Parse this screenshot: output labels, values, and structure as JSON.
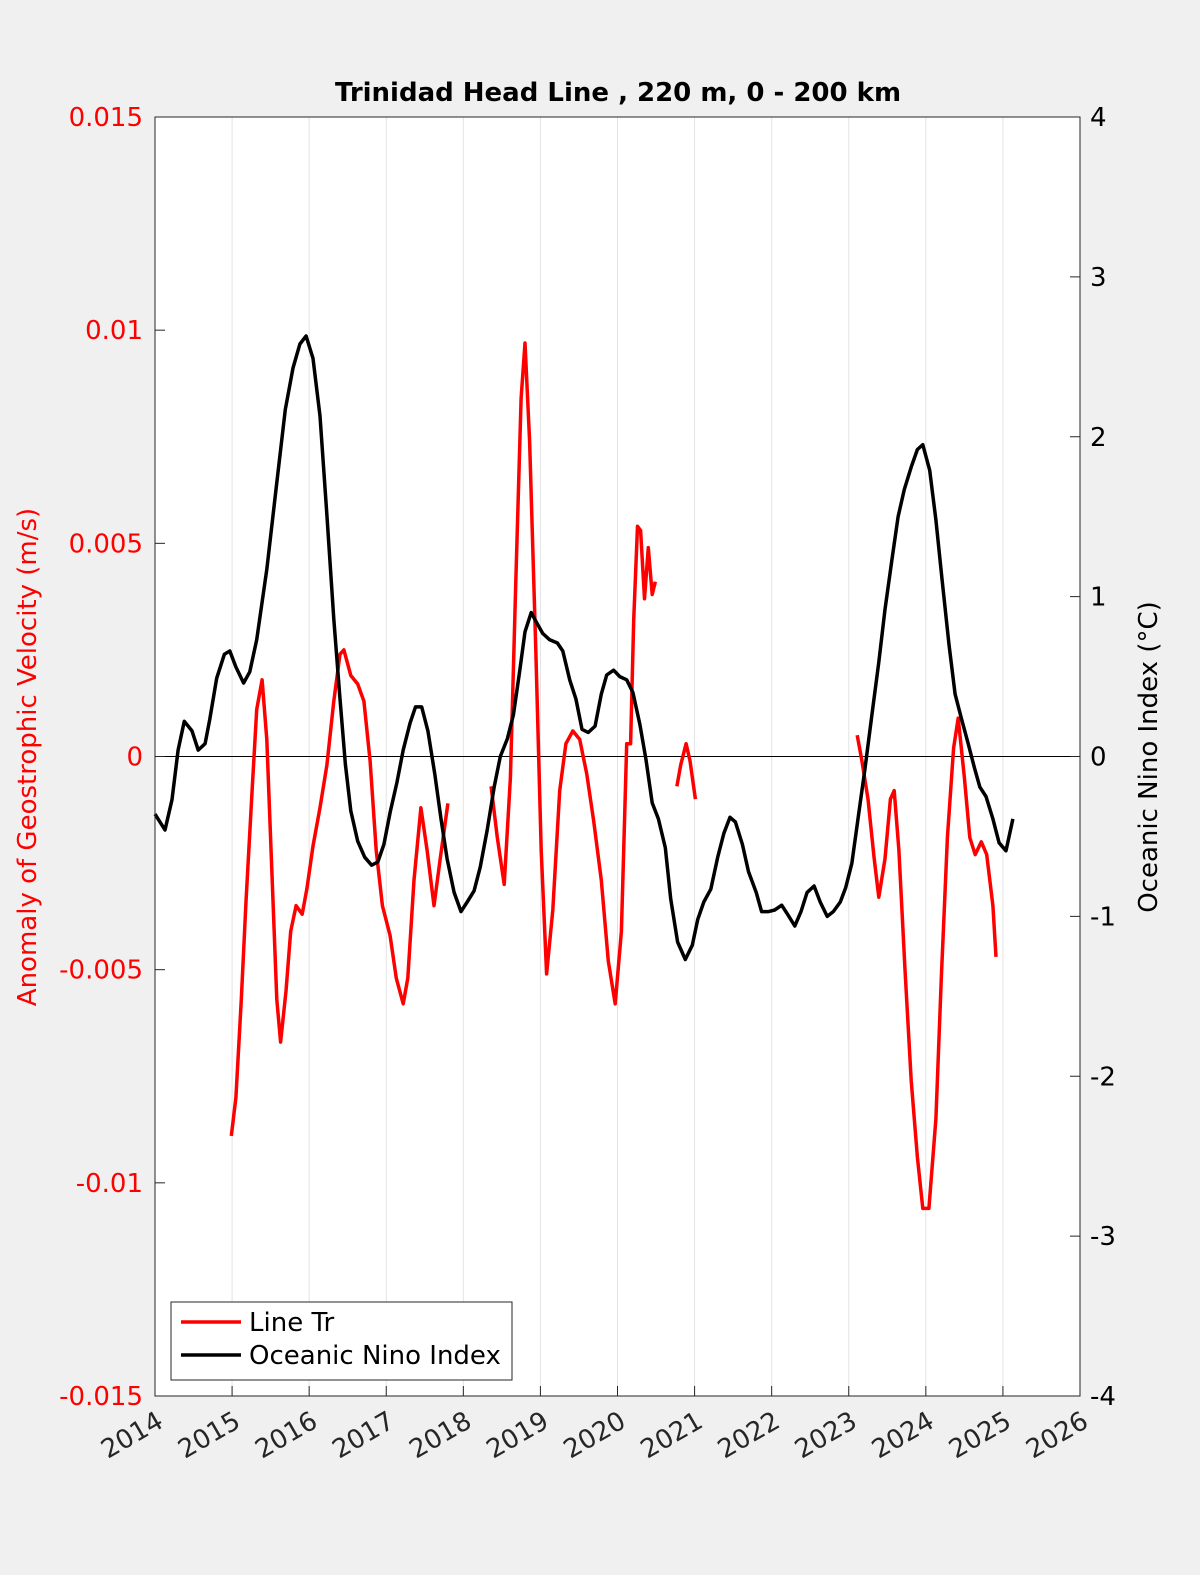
{
  "chart_data": {
    "type": "line",
    "title": "Trinidad Head Line , 220 m, 0 - 200 km",
    "ylabel": "Anomaly of Geostrophic Velocity (m/s)",
    "y2label": "Oceanic Nino Index (°C)",
    "xlim": [
      2014,
      2026
    ],
    "xticks": [
      2014,
      2015,
      2016,
      2017,
      2018,
      2019,
      2020,
      2021,
      2022,
      2023,
      2024,
      2025,
      2026
    ],
    "ylim": [
      -0.015,
      0.015
    ],
    "yticks": [
      -0.015,
      -0.01,
      -0.005,
      0,
      0.005,
      0.01,
      0.015
    ],
    "y2lim": [
      -4,
      4
    ],
    "y2ticks": [
      -4,
      -3,
      -2,
      -1,
      0,
      1,
      2,
      3,
      4
    ],
    "grid": true,
    "legend": "lower left",
    "ylabel_color": "#ff0000",
    "series": [
      {
        "name": "Line Tr",
        "color": "#ff0000",
        "axis": "y",
        "x": [
          2014.99,
          2015.05,
          2015.12,
          2015.18,
          2015.26,
          2015.32,
          2015.39,
          2015.45,
          2015.52,
          2015.58,
          2015.63,
          2015.7,
          2015.76,
          2015.83,
          2015.91,
          2015.97,
          2016.05,
          2016.14,
          2016.23,
          2016.32,
          2016.4,
          2016.45,
          2016.54,
          2016.63,
          2016.71,
          2016.79,
          2016.87,
          2016.95,
          2017.05,
          2017.13,
          2017.22,
          2017.28,
          2017.36,
          2017.45,
          2017.53,
          2017.62,
          2017.7,
          2017.8,
          2018.0,
          2018.36,
          2018.44,
          2018.53,
          2018.61,
          2018.68,
          2018.75,
          2018.8,
          2018.86,
          2018.94,
          2019.01,
          2019.08,
          2019.16,
          2019.25,
          2019.33,
          2019.42,
          2019.51,
          2019.6,
          2019.69,
          2019.79,
          2019.88,
          2019.97,
          2020.05,
          2020.12,
          2020.17,
          2020.21,
          2020.26,
          2020.3,
          2020.35,
          2020.4,
          2020.45,
          2020.49,
          2020.6,
          2020.77,
          2020.82,
          2020.89,
          2020.94,
          2021.01,
          2022.0,
          2023.11,
          2023.17,
          2023.25,
          2023.33,
          2023.39,
          2023.47,
          2023.54,
          2023.59,
          2023.65,
          2023.73,
          2023.81,
          2023.89,
          2023.96,
          2024.04,
          2024.13,
          2024.2,
          2024.28,
          2024.36,
          2024.42,
          2024.5,
          2024.57,
          2024.64,
          2024.72,
          2024.79,
          2024.87,
          2024.91
        ],
        "values": [
          -0.0089,
          -0.008,
          -0.0057,
          -0.0034,
          -0.0008,
          0.0011,
          0.0018,
          0.0004,
          -0.0029,
          -0.0057,
          -0.0067,
          -0.0055,
          -0.0041,
          -0.0035,
          -0.0037,
          -0.0031,
          -0.0021,
          -0.0012,
          -0.0002,
          0.0013,
          0.0024,
          0.0025,
          0.0019,
          0.0017,
          0.0013,
          -0.0001,
          -0.0022,
          -0.0035,
          -0.0042,
          -0.0052,
          -0.0058,
          -0.0052,
          -0.0029,
          -0.0012,
          -0.0022,
          -0.0035,
          -0.0024,
          -0.0011,
          null,
          -0.0007,
          -0.0019,
          -0.003,
          -0.0005,
          0.0041,
          0.0084,
          0.0097,
          0.0074,
          0.0025,
          -0.0022,
          -0.0051,
          -0.0036,
          -0.0008,
          0.0003,
          0.0006,
          0.0004,
          -0.0004,
          -0.0015,
          -0.0029,
          -0.0048,
          -0.0058,
          -0.0041,
          0.0003,
          0.0003,
          0.0032,
          0.0054,
          0.0053,
          0.0037,
          0.0049,
          0.0038,
          0.0041,
          null,
          -0.0007,
          -0.0002,
          0.0003,
          -0.0001,
          -0.001,
          null,
          0.0005,
          -0.0001,
          -0.001,
          -0.0024,
          -0.0033,
          -0.0024,
          -0.001,
          -0.0008,
          -0.0022,
          -0.005,
          -0.0076,
          -0.0094,
          -0.0106,
          -0.0106,
          -0.0085,
          -0.0052,
          -0.0019,
          0.0002,
          0.0009,
          -0.0005,
          -0.0019,
          -0.0023,
          -0.002,
          -0.0023,
          -0.0035,
          -0.0047
        ]
      },
      {
        "name": "Oceanic Nino Index",
        "color": "#000000",
        "axis": "y2",
        "x": [
          2014.0,
          2014.13,
          2014.22,
          2014.3,
          2014.38,
          2014.48,
          2014.56,
          2014.65,
          2014.71,
          2014.8,
          2014.9,
          2014.97,
          2015.05,
          2015.15,
          2015.23,
          2015.32,
          2015.45,
          2015.57,
          2015.69,
          2015.79,
          2015.88,
          2015.96,
          2016.05,
          2016.14,
          2016.23,
          2016.32,
          2016.4,
          2016.47,
          2016.54,
          2016.63,
          2016.72,
          2016.81,
          2016.89,
          2016.97,
          2017.05,
          2017.14,
          2017.22,
          2017.31,
          2017.38,
          2017.46,
          2017.54,
          2017.63,
          2017.71,
          2017.79,
          2017.88,
          2017.97,
          2018.05,
          2018.14,
          2018.22,
          2018.31,
          2018.4,
          2018.48,
          2018.57,
          2018.65,
          2018.73,
          2018.8,
          2018.88,
          2018.96,
          2019.03,
          2019.12,
          2019.22,
          2019.29,
          2019.38,
          2019.46,
          2019.54,
          2019.62,
          2019.71,
          2019.79,
          2019.86,
          2019.95,
          2020.03,
          2020.12,
          2020.2,
          2020.29,
          2020.37,
          2020.45,
          2020.53,
          2020.62,
          2020.69,
          2020.78,
          2020.88,
          2020.97,
          2021.04,
          2021.12,
          2021.21,
          2021.3,
          2021.38,
          2021.46,
          2021.53,
          2021.62,
          2021.7,
          2021.8,
          2021.87,
          2021.96,
          2022.04,
          2022.13,
          2022.21,
          2022.3,
          2022.38,
          2022.46,
          2022.55,
          2022.63,
          2022.72,
          2022.8,
          2022.89,
          2022.96,
          2023.04,
          2023.12,
          2023.21,
          2023.3,
          2023.39,
          2023.47,
          2023.56,
          2023.64,
          2023.72,
          2023.81,
          2023.89,
          2023.96,
          2024.05,
          2024.13,
          2024.21,
          2024.3,
          2024.38,
          2024.46,
          2024.55,
          2024.63,
          2024.7,
          2024.78,
          2024.87,
          2024.95,
          2025.04,
          2025.13
        ],
        "values": [
          -0.36,
          -0.46,
          -0.27,
          0.04,
          0.22,
          0.16,
          0.04,
          0.08,
          0.23,
          0.49,
          0.64,
          0.66,
          0.56,
          0.46,
          0.53,
          0.73,
          1.17,
          1.67,
          2.17,
          2.43,
          2.58,
          2.63,
          2.49,
          2.13,
          1.51,
          0.86,
          0.36,
          -0.05,
          -0.34,
          -0.53,
          -0.63,
          -0.68,
          -0.66,
          -0.55,
          -0.35,
          -0.16,
          0.04,
          0.21,
          0.31,
          0.31,
          0.16,
          -0.11,
          -0.39,
          -0.64,
          -0.85,
          -0.97,
          -0.91,
          -0.84,
          -0.69,
          -0.46,
          -0.19,
          0.0,
          0.11,
          0.26,
          0.53,
          0.78,
          0.9,
          0.83,
          0.77,
          0.73,
          0.71,
          0.66,
          0.48,
          0.36,
          0.17,
          0.15,
          0.19,
          0.39,
          0.51,
          0.54,
          0.5,
          0.48,
          0.4,
          0.2,
          -0.02,
          -0.29,
          -0.39,
          -0.57,
          -0.89,
          -1.16,
          -1.27,
          -1.18,
          -1.02,
          -0.91,
          -0.83,
          -0.63,
          -0.48,
          -0.38,
          -0.41,
          -0.55,
          -0.72,
          -0.85,
          -0.97,
          -0.97,
          -0.96,
          -0.93,
          -0.99,
          -1.06,
          -0.97,
          -0.85,
          -0.81,
          -0.91,
          -1.0,
          -0.97,
          -0.91,
          -0.82,
          -0.67,
          -0.39,
          -0.08,
          0.26,
          0.59,
          0.92,
          1.23,
          1.5,
          1.67,
          1.81,
          1.92,
          1.95,
          1.79,
          1.48,
          1.11,
          0.7,
          0.39,
          0.24,
          0.08,
          -0.07,
          -0.19,
          -0.25,
          -0.39,
          -0.54,
          -0.59,
          -0.39
        ]
      }
    ]
  }
}
